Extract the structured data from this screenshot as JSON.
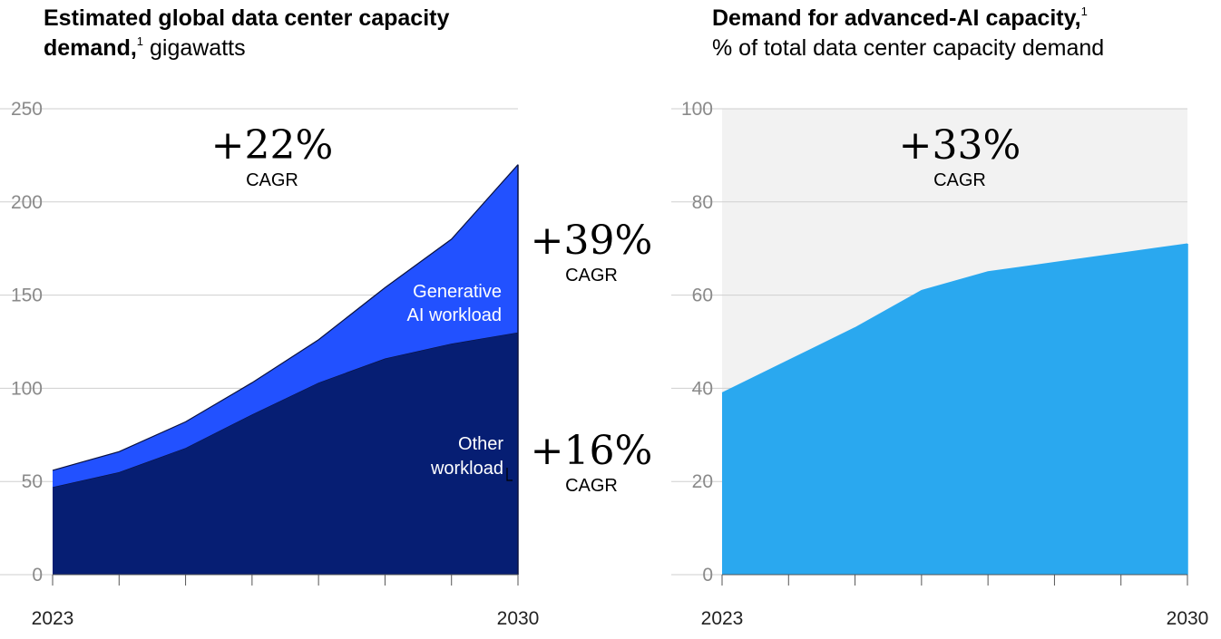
{
  "chart_data": [
    {
      "type": "area",
      "stacked": true,
      "title_bold": "Estimated global data center capacity demand,",
      "title_footnote": "1",
      "title_unit": "gigawatts",
      "x": [
        2023,
        2024,
        2025,
        2026,
        2027,
        2028,
        2029,
        2030
      ],
      "x_tick_labels": [
        "2023",
        "2030"
      ],
      "y_ticks": [
        0,
        50,
        100,
        150,
        200,
        250
      ],
      "ylim": [
        0,
        250
      ],
      "grid": true,
      "series": [
        {
          "name": "Other workload",
          "color": "#061e73",
          "values": [
            47,
            55,
            68,
            86,
            103,
            116,
            124,
            130
          ]
        },
        {
          "name": "Generative AI workload",
          "color": "#2251ff",
          "values": [
            9,
            11,
            14,
            17,
            23,
            38,
            56,
            90
          ]
        }
      ],
      "annotations": {
        "total": {
          "value": "+22%",
          "label": "CAGR"
        },
        "generative": {
          "value": "+39%",
          "label": "CAGR",
          "series_label_line1": "Generative",
          "series_label_line2": "AI workload"
        },
        "other": {
          "value": "+16%",
          "label": "CAGR",
          "series_label_line1": "Other",
          "series_label_line2": "workload"
        }
      }
    },
    {
      "type": "area",
      "title_bold": "Demand for advanced-AI capacity,",
      "title_footnote": "1",
      "title_unit": "% of total data center capacity demand",
      "x": [
        2023,
        2024,
        2025,
        2026,
        2027,
        2028,
        2029,
        2030
      ],
      "x_tick_labels": [
        "2023",
        "2030"
      ],
      "y_ticks": [
        0,
        20,
        40,
        60,
        80,
        100
      ],
      "ylim": [
        0,
        100
      ],
      "grid": true,
      "background_color": "#f2f2f2",
      "series": [
        {
          "color": "#2aa8ef",
          "values": [
            39,
            46,
            53,
            61,
            65,
            67,
            69,
            71
          ]
        }
      ],
      "annotations": {
        "total": {
          "value": "+33%",
          "label": "CAGR"
        }
      }
    }
  ]
}
